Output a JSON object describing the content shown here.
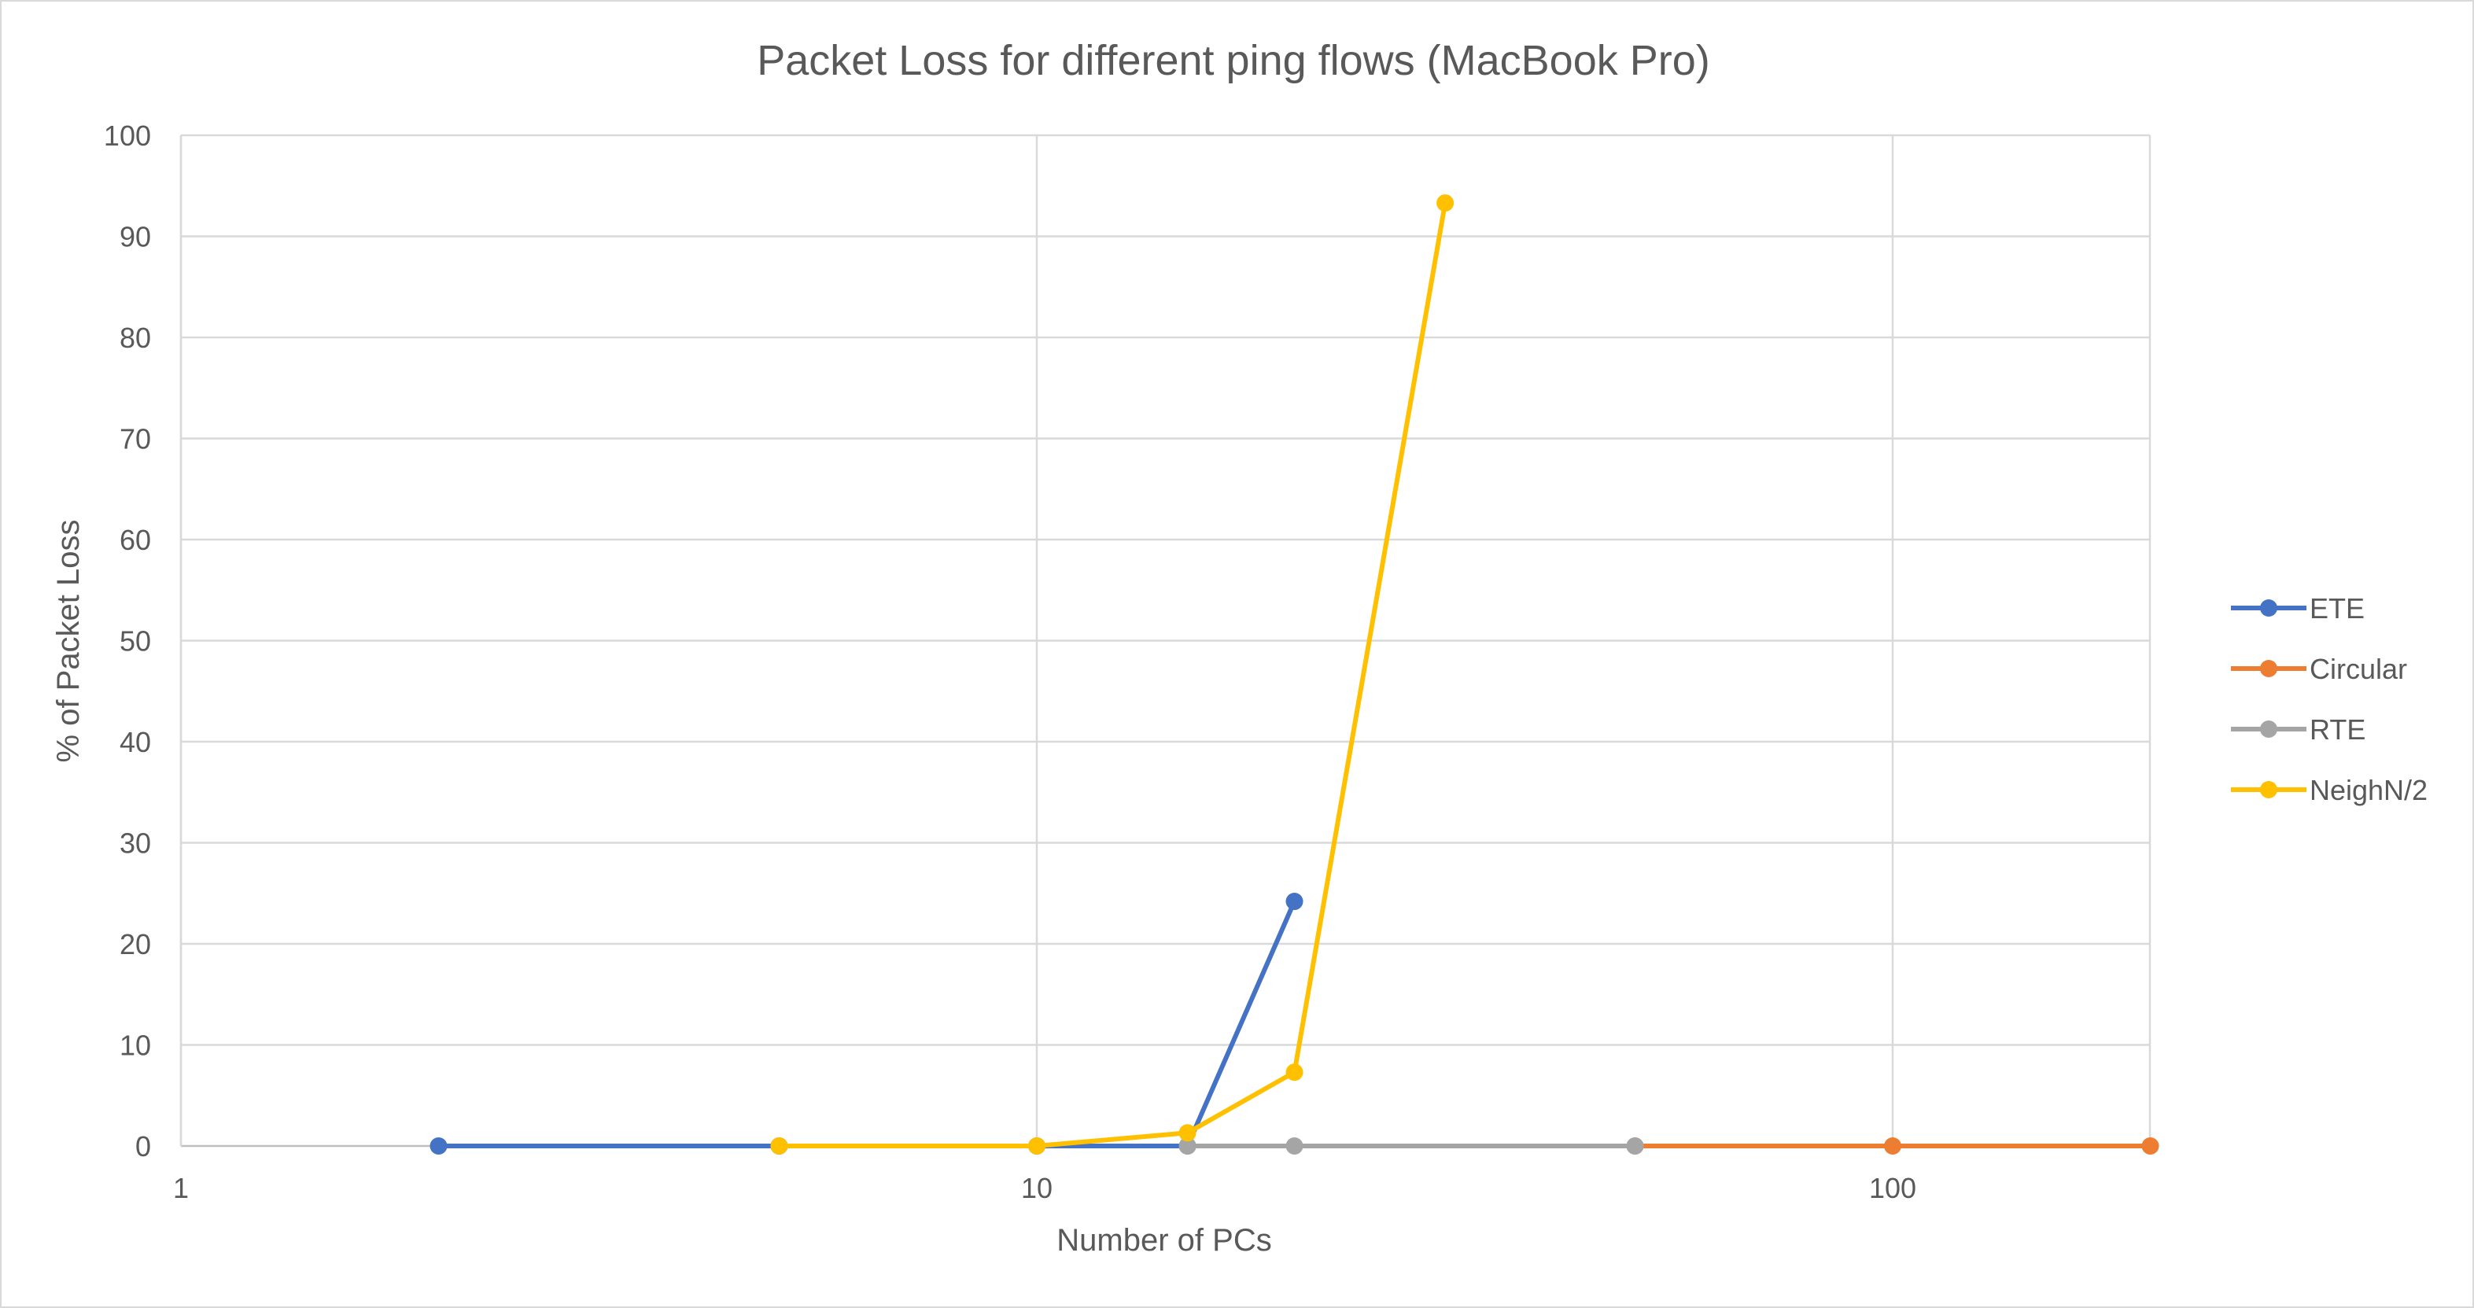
{
  "chart_data": {
    "type": "line",
    "title": "Packet Loss for different ping flows (MacBook Pro)",
    "xlabel": "Number of PCs",
    "ylabel": "% of Packet Loss",
    "x_scale": "log",
    "xlim": [
      1,
      300
    ],
    "ylim": [
      0,
      100
    ],
    "x_ticks": [
      "1",
      "10",
      "100"
    ],
    "y_ticks": [
      "0",
      "10",
      "20",
      "30",
      "40",
      "50",
      "60",
      "70",
      "80",
      "90",
      "100"
    ],
    "grid": true,
    "legend_position": "right",
    "series": [
      {
        "name": "ETE",
        "color": "#4472C4",
        "points": [
          [
            2,
            0
          ],
          [
            5,
            0
          ],
          [
            10,
            0
          ],
          [
            15,
            0
          ],
          [
            20,
            24.2
          ]
        ]
      },
      {
        "name": "Circular",
        "color": "#ED7D31",
        "points": [
          [
            50,
            0
          ],
          [
            100,
            0
          ],
          [
            200,
            0
          ]
        ]
      },
      {
        "name": "RTE",
        "color": "#A5A5A5",
        "points": [
          [
            15,
            0
          ],
          [
            20,
            0
          ],
          [
            50,
            0
          ]
        ]
      },
      {
        "name": "NeighN/2",
        "color": "#FFC000",
        "points": [
          [
            5,
            0
          ],
          [
            10,
            0
          ],
          [
            15,
            1.3
          ],
          [
            20,
            7.3
          ],
          [
            30,
            93.3
          ]
        ]
      }
    ]
  }
}
